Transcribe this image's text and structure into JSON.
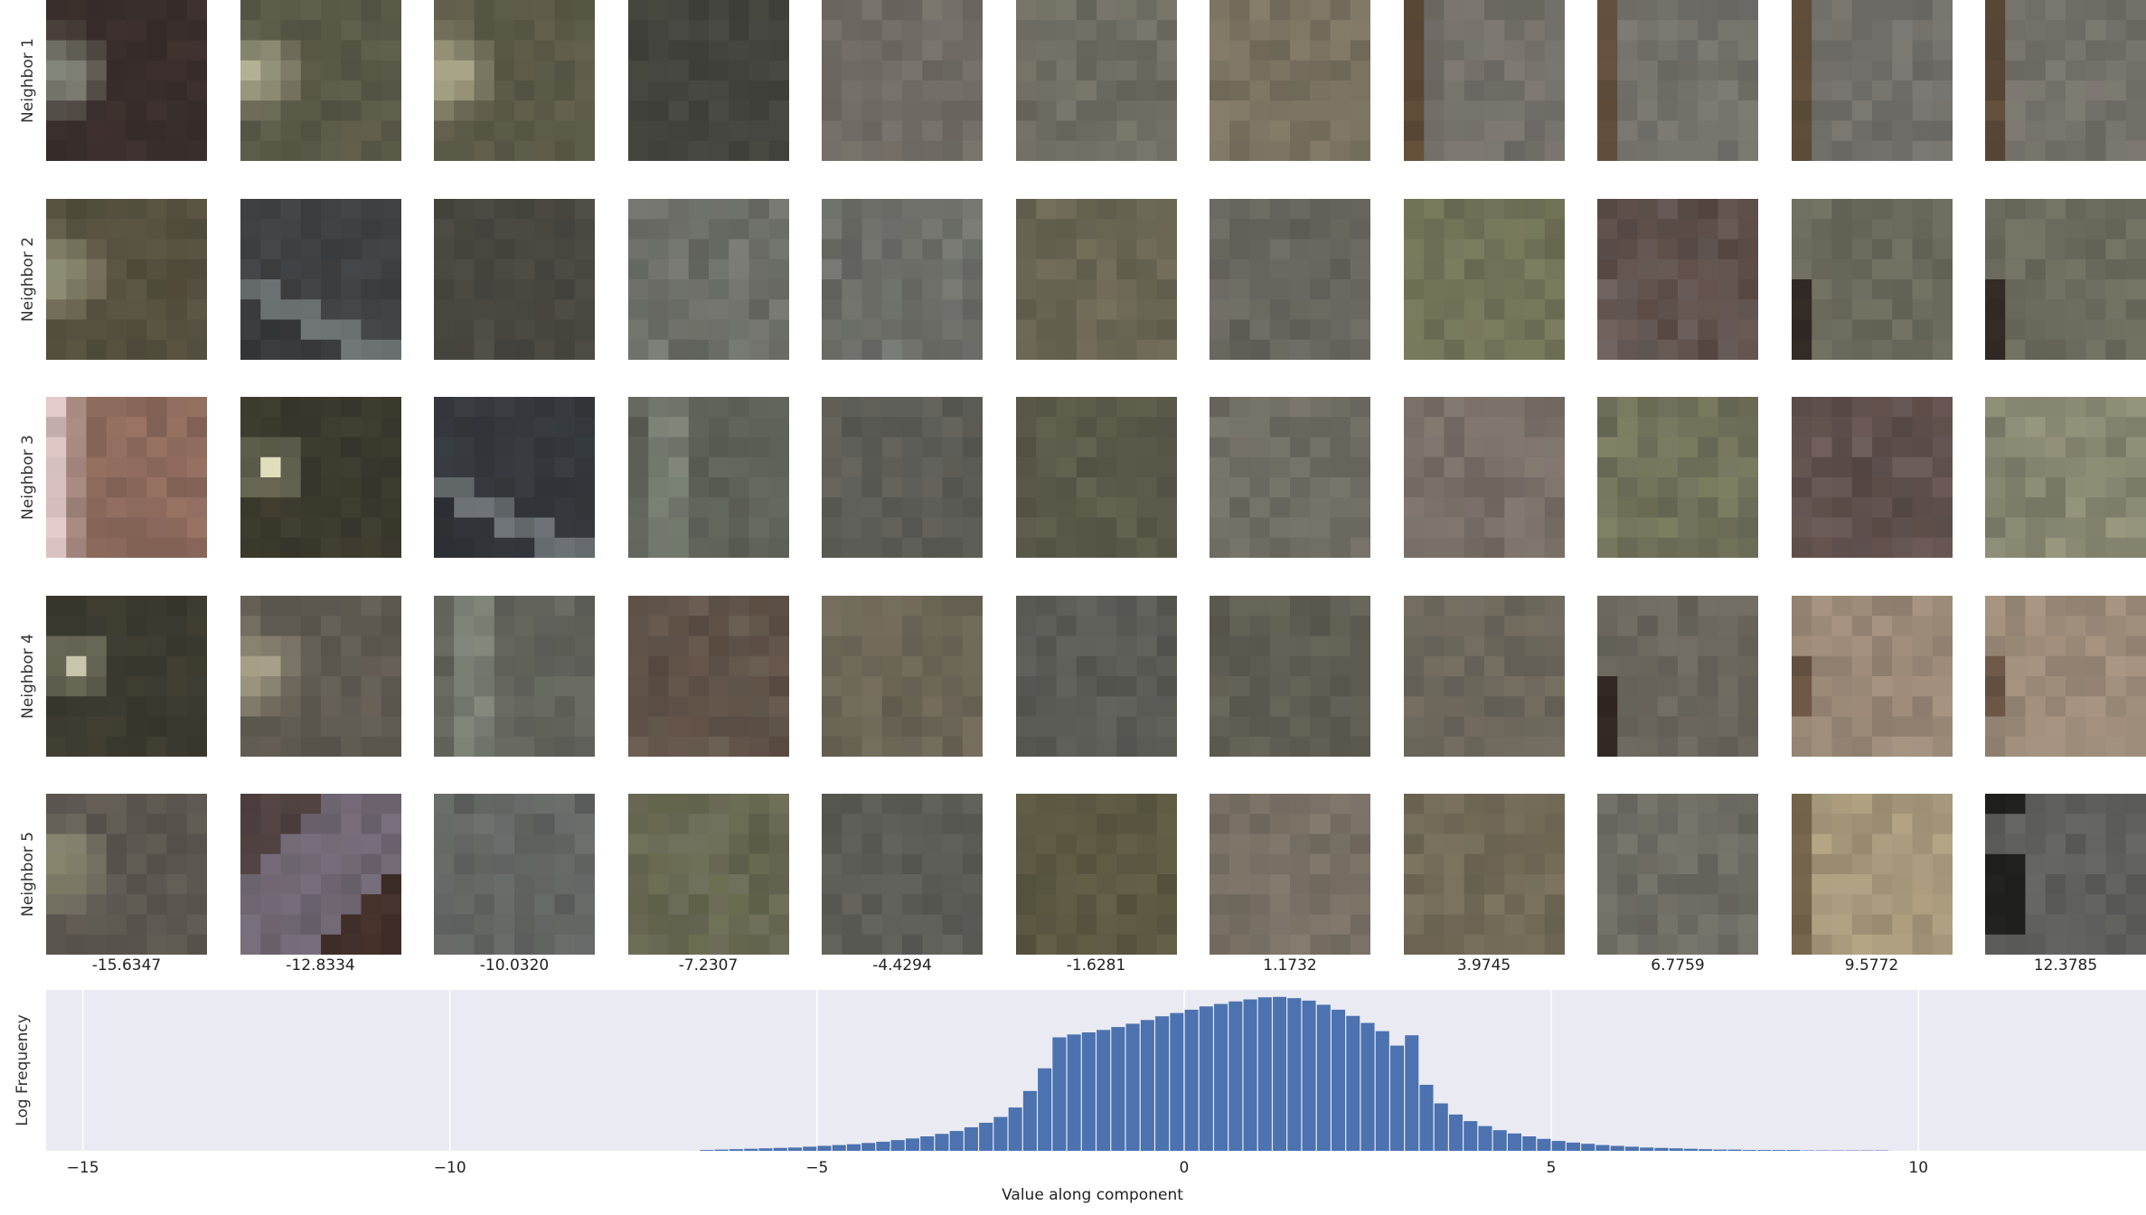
{
  "row_labels": [
    "Neighbor 1",
    "Neighbor 2",
    "Neighbor 3",
    "Neighbor 4",
    "Neighbor 5"
  ],
  "column_values": [
    "-15.6347",
    "-12.8334",
    "-10.0320",
    "-7.2307",
    "-4.4294",
    "-1.6281",
    "1.1732",
    "3.9745",
    "6.7759",
    "9.5772",
    "12.3785"
  ],
  "tiles": [
    [
      {
        "base": "#3a2e2c",
        "accent": "#9aa091",
        "accent_pos": "left"
      },
      {
        "base": "#5a5847",
        "accent": "#b8b79a",
        "accent_pos": "left"
      },
      {
        "base": "#5c5a48",
        "accent": "#b9b697",
        "accent_pos": "left"
      },
      {
        "base": "#45463f",
        "accent": "#3f403a",
        "accent_pos": "none"
      },
      {
        "base": "#6e6963",
        "accent": "#757068",
        "accent_pos": "none"
      },
      {
        "base": "#6d6c60",
        "accent": "#737267",
        "accent_pos": "none"
      },
      {
        "base": "#77705f",
        "accent": "#807865",
        "accent_pos": "none"
      },
      {
        "base": "#74706a",
        "accent": "#5a4630",
        "accent_pos": "leftstrip"
      },
      {
        "base": "#74716b",
        "accent": "#5b4733",
        "accent_pos": "leftstrip"
      },
      {
        "base": "#72706a",
        "accent": "#5c4935",
        "accent_pos": "leftstrip"
      },
      {
        "base": "#74716a",
        "accent": "#5a4633",
        "accent_pos": "leftstrip"
      }
    ],
    [
      {
        "base": "#55503f",
        "accent": "#9b9a80",
        "accent_pos": "left"
      },
      {
        "base": "#3f4244",
        "accent": "#6f7577",
        "accent_pos": "diag"
      },
      {
        "base": "#48463f",
        "accent": "#4d4b44",
        "accent_pos": "none"
      },
      {
        "base": "#686a63",
        "accent": "#7d8079",
        "accent_pos": "none"
      },
      {
        "base": "#676862",
        "accent": "#7b7d77",
        "accent_pos": "none"
      },
      {
        "base": "#686452",
        "accent": "#6e6a58",
        "accent_pos": "none"
      },
      {
        "base": "#64645c",
        "accent": "#6a6a62",
        "accent_pos": "none"
      },
      {
        "base": "#707055",
        "accent": "#787a5e",
        "accent_pos": "none"
      },
      {
        "base": "#6b5e5a",
        "accent": "#4a3832",
        "accent_pos": "none"
      },
      {
        "base": "#6b6a5c",
        "accent": "#2e2622",
        "accent_pos": "darkbar"
      },
      {
        "base": "#6c6b5d",
        "accent": "#2d2521",
        "accent_pos": "darkbar"
      }
    ],
    [
      {
        "base": "#8c6a5c",
        "accent": "#d7c1c1",
        "accent_pos": "pinkstrip"
      },
      {
        "base": "#3c3a2d",
        "accent": "#cfcfb0",
        "accent_pos": "dot"
      },
      {
        "base": "#35393d",
        "accent": "#6c7275",
        "accent_pos": "diag"
      },
      {
        "base": "#5e6158",
        "accent": "#8a9486",
        "accent_pos": "vstrip"
      },
      {
        "base": "#5b5b55",
        "accent": "#606059",
        "accent_pos": "none"
      },
      {
        "base": "#595949",
        "accent": "#5e5e4e",
        "accent_pos": "none"
      },
      {
        "base": "#6d6b61",
        "accent": "#736f65",
        "accent_pos": "none"
      },
      {
        "base": "#766d66",
        "accent": "#7c7369",
        "accent_pos": "none"
      },
      {
        "base": "#6d6d5a",
        "accent": "#808060",
        "accent_pos": "none"
      },
      {
        "base": "#6b5b59",
        "accent": "#4c3d38",
        "accent_pos": "none"
      },
      {
        "base": "#7e7d6a",
        "accent": "#9b9a80",
        "accent_pos": "none"
      }
    ],
    [
      {
        "base": "#3b3a2e",
        "accent": "#d2d0b6",
        "accent_pos": "dot"
      },
      {
        "base": "#5f5a50",
        "accent": "#b3ad93",
        "accent_pos": "left"
      },
      {
        "base": "#62645c",
        "accent": "#8c9487",
        "accent_pos": "vstrip"
      },
      {
        "base": "#5c4d43",
        "accent": "#6d6358",
        "accent_pos": "none"
      },
      {
        "base": "#6a6455",
        "accent": "#706a5b",
        "accent_pos": "none"
      },
      {
        "base": "#595954",
        "accent": "#5e5e59",
        "accent_pos": "none"
      },
      {
        "base": "#5c5c50",
        "accent": "#626256",
        "accent_pos": "none"
      },
      {
        "base": "#6a6559",
        "accent": "#716b5f",
        "accent_pos": "none"
      },
      {
        "base": "#6a665c",
        "accent": "#2e2420",
        "accent_pos": "darkbar"
      },
      {
        "base": "#9a8877",
        "accent": "#5a4435",
        "accent_pos": "smudge"
      },
      {
        "base": "#9b8a78",
        "accent": "#5b4536",
        "accent_pos": "smudge"
      }
    ],
    [
      {
        "base": "#5c5750",
        "accent": "#9b9a7c",
        "accent_pos": "left"
      },
      {
        "base": "#6f6672",
        "accent": "#3d2a22",
        "accent_pos": "diag2"
      },
      {
        "base": "#5f6260",
        "accent": "#6a6e6a",
        "accent_pos": "none"
      },
      {
        "base": "#6b6a58",
        "accent": "#5c6040",
        "accent_pos": "none"
      },
      {
        "base": "#5b5b56",
        "accent": "#606059",
        "accent_pos": "none"
      },
      {
        "base": "#5a5640",
        "accent": "#615d47",
        "accent_pos": "none"
      },
      {
        "base": "#766e62",
        "accent": "#7d7569",
        "accent_pos": "none"
      },
      {
        "base": "#706956",
        "accent": "#77705d",
        "accent_pos": "none"
      },
      {
        "base": "#6c6a62",
        "accent": "#747269",
        "accent_pos": "none"
      },
      {
        "base": "#a5977a",
        "accent": "#6e5e44",
        "accent_pos": "leftstrip"
      },
      {
        "base": "#5f5f5d",
        "accent": "#191917",
        "accent_pos": "darkbar2"
      }
    ]
  ],
  "chart_data": {
    "type": "bar",
    "xlabel": "Value along component",
    "ylabel": "Log Frequency",
    "xlim": [
      -15.5,
      13.1
    ],
    "xticks": [
      -15,
      -10,
      -5,
      0,
      5,
      10
    ],
    "grid": true,
    "bin_width": 0.2,
    "bins_start": -6.6,
    "values": [
      0.02,
      0.03,
      0.04,
      0.05,
      0.06,
      0.07,
      0.08,
      0.1,
      0.12,
      0.14,
      0.16,
      0.19,
      0.22,
      0.26,
      0.3,
      0.35,
      0.41,
      0.48,
      0.57,
      0.68,
      0.82,
      1.05,
      1.45,
      2.0,
      2.75,
      2.82,
      2.87,
      2.93,
      3.0,
      3.08,
      3.17,
      3.26,
      3.34,
      3.42,
      3.5,
      3.56,
      3.62,
      3.67,
      3.72,
      3.73,
      3.7,
      3.64,
      3.54,
      3.42,
      3.27,
      3.1,
      2.9,
      2.55,
      2.8,
      1.6,
      1.15,
      0.88,
      0.72,
      0.6,
      0.5,
      0.42,
      0.35,
      0.29,
      0.24,
      0.2,
      0.17,
      0.14,
      0.12,
      0.1,
      0.08,
      0.07,
      0.06,
      0.05,
      0.04,
      0.03,
      0.03,
      0.02,
      0.02,
      0.02,
      0.02,
      0.01,
      0.01,
      0.01,
      0.01,
      0.01,
      0.01
    ],
    "ylim": [
      0,
      3.9
    ],
    "color": "#4c72b0",
    "background": "#eaeaf2"
  }
}
